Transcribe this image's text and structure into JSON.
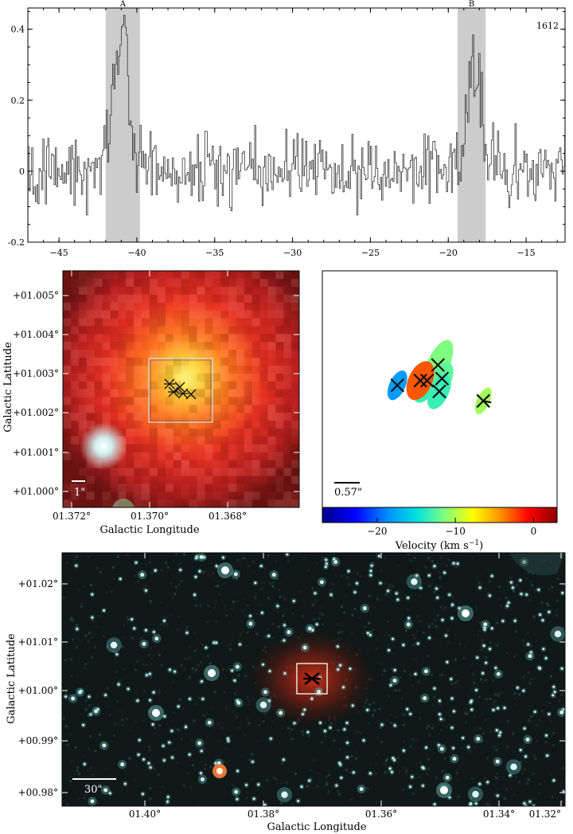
{
  "chart_data": [
    {
      "type": "line",
      "label": "1612",
      "xlim": [
        -47,
        -12.5
      ],
      "ylim": [
        -0.2,
        0.46
      ],
      "xticks": [
        -45,
        -40,
        -35,
        -30,
        -25,
        -20,
        -15
      ],
      "yticks": [
        -0.2,
        0,
        0.2,
        0.4
      ],
      "ytick_labels": [
        "-0.2",
        "0",
        "0.2",
        "0.4"
      ],
      "bands": [
        {
          "label": "A",
          "x0": -42.0,
          "x1": -39.8
        },
        {
          "label": "B",
          "x0": -19.4,
          "x1": -17.6
        }
      ],
      "features": [
        {
          "center": -41.0,
          "amplitude": 0.36,
          "sigma": 0.55
        },
        {
          "center": -18.3,
          "amplitude": 0.27,
          "sigma": 0.5
        }
      ],
      "baseline": 0.0,
      "noise": 0.075,
      "step": 0.08
    },
    {
      "type": "heatmap",
      "xlabel": "Galactic Longitude",
      "ylabel": "Galactic Latitude",
      "xticks": [
        "01.372°",
        "01.370°",
        "01.368°"
      ],
      "yticks": [
        "+01.005°",
        "+01.004°",
        "+01.003°",
        "+01.002°",
        "+01.001°",
        "+01.000°"
      ],
      "scalebar": "1\""
    },
    {
      "type": "scatter",
      "scalebar": "0.57\"",
      "colorbar": {
        "label": "Velocity (km s",
        "label_exp": "−1",
        "label_end": ")",
        "ticks": [
          -20,
          -10,
          0
        ],
        "range": [
          -27,
          3
        ]
      },
      "spots": [
        {
          "velocity": -19,
          "x": -0.62,
          "y": 0.05
        },
        {
          "velocity": -14,
          "x": -0.18,
          "y": 0.12
        },
        {
          "velocity": -12,
          "x": -0.02,
          "y": 0.35
        },
        {
          "velocity": -13,
          "x": 0.04,
          "y": 0.15
        },
        {
          "velocity": -14,
          "x": 0.0,
          "y": -0.04
        },
        {
          "velocity": -11,
          "x": 0.65,
          "y": -0.18
        },
        {
          "velocity": -3,
          "x": -0.28,
          "y": 0.12
        }
      ]
    },
    {
      "type": "heatmap",
      "xlabel": "Galactic Longitude",
      "ylabel": "Galactic Latitude",
      "xticks": [
        "01.40°",
        "01.38°",
        "01.36°",
        "01.34°",
        "01.32°"
      ],
      "yticks": [
        "+01.02°",
        "+01.01°",
        "+01.00°",
        "+00.99°",
        "+00.98°"
      ],
      "scalebar": "30\""
    }
  ],
  "colors": {
    "band": "#cccccc",
    "spectrum": "#333333",
    "cbar": [
      "#00008b",
      "#0000ff",
      "#0090ff",
      "#00e0e0",
      "#7fff7f",
      "#ffff00",
      "#ff9000",
      "#ff0000",
      "#8b0000"
    ]
  }
}
